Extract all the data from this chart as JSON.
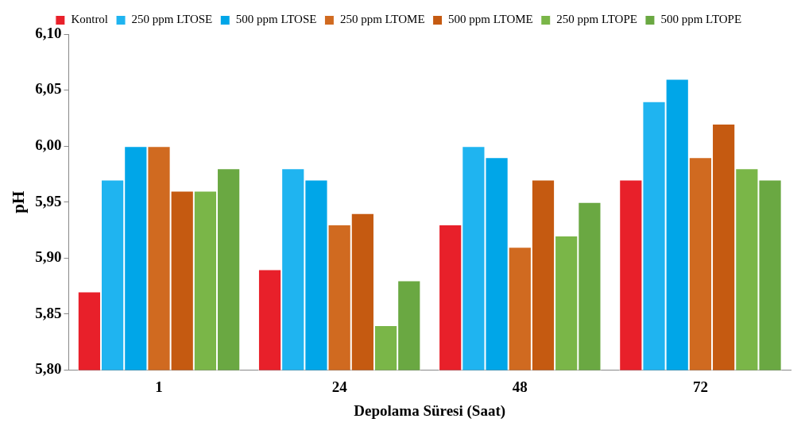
{
  "chart_data": {
    "type": "bar",
    "xlabel": "Depolama Süresi (Saat)",
    "ylabel": "pH",
    "categories": [
      "1",
      "24",
      "48",
      "72"
    ],
    "series": [
      {
        "name": "Kontrol",
        "color": "#e8202a",
        "values": [
          5.87,
          5.89,
          5.93,
          5.97
        ]
      },
      {
        "name": "250 ppm LTOSE",
        "color": "#1fb4f0",
        "values": [
          5.97,
          5.98,
          6.0,
          6.04
        ]
      },
      {
        "name": "500 ppm LTOSE",
        "color": "#00a6e8",
        "values": [
          6.0,
          5.97,
          5.99,
          6.06
        ]
      },
      {
        "name": "250 ppm LTOME",
        "color": "#d06a20",
        "values": [
          6.0,
          5.93,
          5.91,
          5.99
        ]
      },
      {
        "name": "500 ppm LTOME",
        "color": "#c55a11",
        "values": [
          5.96,
          5.94,
          5.97,
          6.02
        ]
      },
      {
        "name": "250 ppm LTOPE",
        "color": "#7ab648",
        "values": [
          5.96,
          5.84,
          5.92,
          5.98
        ]
      },
      {
        "name": "500 ppm LTOPE",
        "color": "#6aa842",
        "values": [
          5.98,
          5.88,
          5.95,
          5.97
        ]
      }
    ],
    "ylim": [
      5.8,
      6.1
    ],
    "yticks": [
      {
        "value": 5.8,
        "label": "5,80"
      },
      {
        "value": 5.85,
        "label": "5,85"
      },
      {
        "value": 5.9,
        "label": "5,90"
      },
      {
        "value": 5.95,
        "label": "5,95"
      },
      {
        "value": 6.0,
        "label": "6,00"
      },
      {
        "value": 6.05,
        "label": "6,05"
      },
      {
        "value": 6.1,
        "label": "6,10"
      }
    ],
    "grid": false,
    "legend": "top"
  }
}
